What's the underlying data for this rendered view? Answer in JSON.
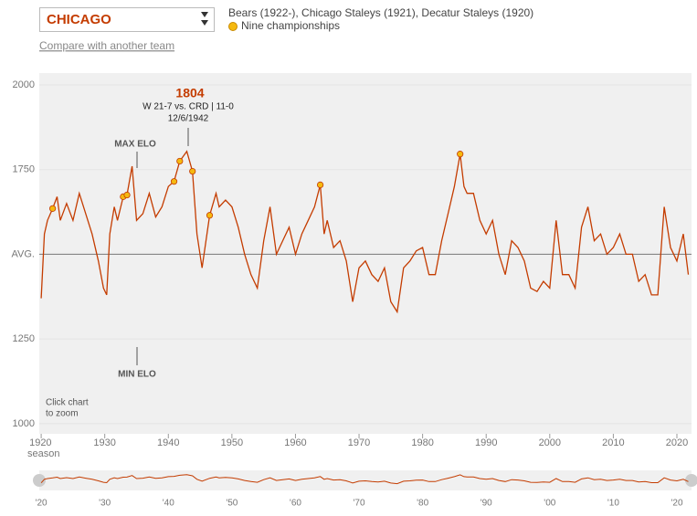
{
  "header": {
    "team": "CHICAGO",
    "names": "Bears (1922-), Chicago Staleys (1921), Decatur Staleys (1920)",
    "compare": "Compare with another team"
  },
  "chart_data": {
    "type": "line",
    "x_label": "season",
    "xlim": [
      1919.7,
      2022.3
    ],
    "xticks": [
      1920,
      1930,
      1940,
      1950,
      1960,
      1970,
      1980,
      1990,
      2000,
      2010,
      2020
    ],
    "ylim": [
      970,
      2035
    ],
    "yticks": [
      1000,
      1250,
      {
        "value": 1500,
        "label": "AVG."
      },
      1750,
      2000
    ],
    "series": [
      {
        "name": "Elo",
        "color": "#c43c00",
        "x": [
          1920.0,
          1920.5,
          1921.0,
          1921.8,
          1922.5,
          1923,
          1924,
          1925,
          1926,
          1927,
          1928,
          1929,
          1929.8,
          1930.3,
          1930.8,
          1931.5,
          1932,
          1932.9,
          1933.5,
          1934.3,
          1935,
          1936,
          1937,
          1938,
          1939,
          1940,
          1940.9,
          1941.8,
          1942.9,
          1943.8,
          1944.5,
          1945.3,
          1946.5,
          1947.5,
          1948,
          1949,
          1950,
          1951,
          1952,
          1953,
          1954,
          1955,
          1956,
          1957,
          1958,
          1959,
          1960,
          1961,
          1962,
          1963,
          1963.9,
          1964.5,
          1965,
          1966,
          1967,
          1968,
          1969,
          1970,
          1971,
          1972,
          1973,
          1974,
          1975,
          1976,
          1977,
          1978,
          1979,
          1980,
          1981,
          1982,
          1983,
          1984,
          1985,
          1985.9,
          1986.5,
          1987,
          1988,
          1989,
          1990,
          1991,
          1992,
          1993,
          1994,
          1995,
          1996,
          1997,
          1998,
          1999,
          2000,
          2001,
          2002,
          2003,
          2004,
          2005,
          2006,
          2007,
          2008,
          2009,
          2010,
          2011,
          2012,
          2013,
          2014,
          2015,
          2016,
          2017,
          2018,
          2019,
          2020,
          2021,
          2021.8
        ],
        "values": [
          1370,
          1560,
          1600,
          1635,
          1670,
          1600,
          1650,
          1600,
          1680,
          1620,
          1560,
          1480,
          1400,
          1380,
          1560,
          1640,
          1600,
          1670,
          1675,
          1760,
          1600,
          1620,
          1680,
          1610,
          1640,
          1700,
          1715,
          1775,
          1804,
          1745,
          1560,
          1460,
          1615,
          1680,
          1640,
          1660,
          1640,
          1580,
          1500,
          1440,
          1400,
          1540,
          1640,
          1500,
          1540,
          1580,
          1500,
          1560,
          1600,
          1640,
          1705,
          1560,
          1600,
          1520,
          1540,
          1480,
          1360,
          1460,
          1480,
          1440,
          1420,
          1460,
          1360,
          1330,
          1460,
          1480,
          1510,
          1520,
          1440,
          1440,
          1540,
          1620,
          1700,
          1796,
          1700,
          1680,
          1680,
          1600,
          1560,
          1600,
          1500,
          1440,
          1540,
          1520,
          1480,
          1400,
          1390,
          1420,
          1400,
          1600,
          1440,
          1440,
          1400,
          1580,
          1640,
          1540,
          1560,
          1500,
          1520,
          1560,
          1500,
          1500,
          1420,
          1440,
          1380,
          1380,
          1640,
          1520,
          1480,
          1560,
          1440
        ]
      },
      {
        "name": "Nine championships",
        "color": "#f5b90f",
        "x": [
          1921.8,
          1932.9,
          1933.5,
          1940.9,
          1941.8,
          1943.8,
          1946.5,
          1963.9,
          1985.9
        ],
        "values": [
          1635,
          1670,
          1675,
          1715,
          1775,
          1745,
          1615,
          1705,
          1796
        ]
      }
    ],
    "annotations": {
      "peak": "1804",
      "game": "W 21-7 vs. CRD | 11-0",
      "date": "12/6/1942",
      "max": "MAX ELO",
      "min": "MIN ELO",
      "zoom1": "Click chart",
      "zoom2": "to zoom"
    },
    "mini_xticks": [
      {
        "value": 1920,
        "label": "'20"
      },
      {
        "value": 1930,
        "label": "'30"
      },
      {
        "value": 1940,
        "label": "'40"
      },
      {
        "value": 1950,
        "label": "'50"
      },
      {
        "value": 1960,
        "label": "'60"
      },
      {
        "value": 1970,
        "label": "'70"
      },
      {
        "value": 1980,
        "label": "'80"
      },
      {
        "value": 1990,
        "label": "'90"
      },
      {
        "value": 2000,
        "label": "'00"
      },
      {
        "value": 2010,
        "label": "'10"
      },
      {
        "value": 2020,
        "label": "'20"
      }
    ]
  }
}
